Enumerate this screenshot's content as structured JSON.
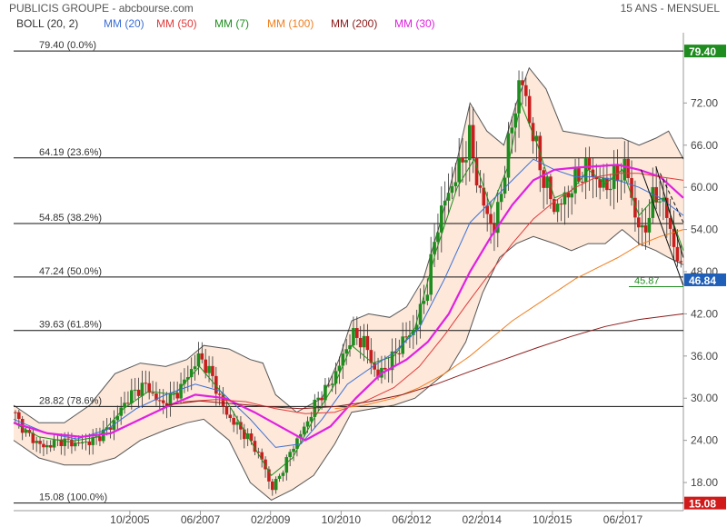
{
  "header": {
    "title": "PUBLICIS GROUPE - abcbourse.com",
    "period": "15 ANS - MENSUEL"
  },
  "legend": [
    {
      "label": "BOLL (20, 2)",
      "color": "#333333"
    },
    {
      "label": "MM (20)",
      "color": "#3b6fd6"
    },
    {
      "label": "MM (50)",
      "color": "#e23a3a"
    },
    {
      "label": "MM (7)",
      "color": "#1f8f1f"
    },
    {
      "label": "MM (100)",
      "color": "#f07f1f"
    },
    {
      "label": "MM (200)",
      "color": "#8b1a1a"
    },
    {
      "label": "MM (30)",
      "color": "#e020e0"
    }
  ],
  "chart_data": {
    "type": "line",
    "title": "PUBLICIS GROUPE - abcbourse.com",
    "subtitle": "15 ANS - MENSUEL",
    "ylim": [
      14,
      82
    ],
    "xlim": [
      2003.0,
      2018.85
    ],
    "y_ticks": [
      "18.00",
      "24.00",
      "30.00",
      "36.00",
      "42.00",
      "48.00",
      "54.00",
      "60.00",
      "66.00",
      "72.00"
    ],
    "x_ticks": [
      {
        "label": "10/2005",
        "t": 2005.75
      },
      {
        "label": "06/2007",
        "t": 2007.42
      },
      {
        "label": "02/2009",
        "t": 2009.08
      },
      {
        "label": "10/2010",
        "t": 2010.75
      },
      {
        "label": "06/2012",
        "t": 2012.42
      },
      {
        "label": "02/2014",
        "t": 2014.08
      },
      {
        "label": "10/2015",
        "t": 2015.75
      },
      {
        "label": "06/2017",
        "t": 2017.42
      }
    ],
    "fibonacci_levels": [
      {
        "label": "79.40 (0.0%)",
        "value": 79.4
      },
      {
        "label": "64.19 (23.6%)",
        "value": 64.19
      },
      {
        "label": "54.85 (38.2%)",
        "value": 54.85
      },
      {
        "label": "47.24 (50.0%)",
        "value": 47.24
      },
      {
        "label": "39.63 (61.8%)",
        "value": 39.63
      },
      {
        "label": "28.82 (78.6%)",
        "value": 28.82
      },
      {
        "label": "15.08 (100.0%)",
        "value": 15.08
      }
    ],
    "price_tags": [
      {
        "label": "79.40",
        "value": 79.4,
        "color": "#1e8c1e"
      },
      {
        "label": "46.84",
        "value": 46.84,
        "color": "#1f5fb8"
      },
      {
        "label": "15.08",
        "value": 15.08,
        "color": "#d11a1a"
      }
    ],
    "annotation": {
      "label": "45.87",
      "value": 45.87
    },
    "price_anchors": [
      [
        2003.0,
        28
      ],
      [
        2003.3,
        25
      ],
      [
        2003.7,
        23
      ],
      [
        2004.1,
        24
      ],
      [
        2004.5,
        23.5
      ],
      [
        2004.9,
        24
      ],
      [
        2005.3,
        26
      ],
      [
        2005.7,
        30
      ],
      [
        2006.1,
        32
      ],
      [
        2006.5,
        29
      ],
      [
        2006.9,
        31
      ],
      [
        2007.2,
        34
      ],
      [
        2007.4,
        36
      ],
      [
        2007.7,
        33
      ],
      [
        2008.0,
        28
      ],
      [
        2008.3,
        26
      ],
      [
        2008.6,
        24
      ],
      [
        2008.9,
        21
      ],
      [
        2009.1,
        17
      ],
      [
        2009.3,
        19
      ],
      [
        2009.6,
        23
      ],
      [
        2009.9,
        26
      ],
      [
        2010.2,
        30
      ],
      [
        2010.5,
        32
      ],
      [
        2010.8,
        36
      ],
      [
        2011.0,
        39
      ],
      [
        2011.3,
        38
      ],
      [
        2011.6,
        33
      ],
      [
        2011.9,
        35
      ],
      [
        2012.2,
        38
      ],
      [
        2012.5,
        40
      ],
      [
        2012.8,
        46
      ],
      [
        2013.0,
        54
      ],
      [
        2013.2,
        58
      ],
      [
        2013.5,
        62
      ],
      [
        2013.8,
        67
      ],
      [
        2014.0,
        60
      ],
      [
        2014.2,
        56
      ],
      [
        2014.4,
        54
      ],
      [
        2014.6,
        62
      ],
      [
        2014.8,
        69
      ],
      [
        2015.0,
        76
      ],
      [
        2015.2,
        70
      ],
      [
        2015.5,
        62
      ],
      [
        2015.8,
        57
      ],
      [
        2016.0,
        58
      ],
      [
        2016.3,
        61
      ],
      [
        2016.6,
        63
      ],
      [
        2016.9,
        60
      ],
      [
        2017.2,
        61
      ],
      [
        2017.5,
        63
      ],
      [
        2017.7,
        56
      ],
      [
        2017.9,
        53
      ],
      [
        2018.1,
        58
      ],
      [
        2018.3,
        59
      ],
      [
        2018.5,
        55
      ],
      [
        2018.7,
        50
      ],
      [
        2018.85,
        46.84
      ]
    ],
    "series": [
      {
        "label": "MM (7)",
        "color": "#1f8f1f",
        "width": 1.0,
        "values": [
          [
            2003.0,
            26.5
          ],
          [
            2003.6,
            24.5
          ],
          [
            2004.3,
            23.8
          ],
          [
            2005.0,
            24.5
          ],
          [
            2005.6,
            28.5
          ],
          [
            2006.2,
            31
          ],
          [
            2006.8,
            30.5
          ],
          [
            2007.4,
            34.5
          ],
          [
            2007.9,
            31
          ],
          [
            2008.5,
            25
          ],
          [
            2009.1,
            19
          ],
          [
            2009.6,
            21.5
          ],
          [
            2010.1,
            27
          ],
          [
            2010.6,
            32
          ],
          [
            2011.0,
            37.5
          ],
          [
            2011.5,
            35
          ],
          [
            2012.0,
            36
          ],
          [
            2012.5,
            40
          ],
          [
            2013.0,
            51
          ],
          [
            2013.5,
            60
          ],
          [
            2013.9,
            64
          ],
          [
            2014.3,
            57
          ],
          [
            2014.7,
            63
          ],
          [
            2015.0,
            72
          ],
          [
            2015.4,
            66
          ],
          [
            2015.8,
            58.5
          ],
          [
            2016.2,
            59.5
          ],
          [
            2016.6,
            62.5
          ],
          [
            2017.0,
            60.5
          ],
          [
            2017.4,
            62.5
          ],
          [
            2017.8,
            56
          ],
          [
            2018.1,
            58
          ],
          [
            2018.4,
            58.5
          ],
          [
            2018.85,
            51
          ]
        ]
      },
      {
        "label": "MM (20)",
        "color": "#3b6fd6",
        "width": 1.0,
        "values": [
          [
            2003.0,
            27
          ],
          [
            2003.8,
            25
          ],
          [
            2004.5,
            24.2
          ],
          [
            2005.2,
            25.5
          ],
          [
            2005.9,
            28.5
          ],
          [
            2006.6,
            30.5
          ],
          [
            2007.3,
            32
          ],
          [
            2007.9,
            31
          ],
          [
            2008.6,
            27
          ],
          [
            2009.2,
            23
          ],
          [
            2009.8,
            23.5
          ],
          [
            2010.3,
            27
          ],
          [
            2010.9,
            32
          ],
          [
            2011.5,
            34.5
          ],
          [
            2012.0,
            36.5
          ],
          [
            2012.6,
            40
          ],
          [
            2013.2,
            47
          ],
          [
            2013.8,
            55
          ],
          [
            2014.3,
            58
          ],
          [
            2014.8,
            61
          ],
          [
            2015.3,
            64
          ],
          [
            2015.8,
            62.5
          ],
          [
            2016.3,
            61.5
          ],
          [
            2016.8,
            61.5
          ],
          [
            2017.3,
            61
          ],
          [
            2017.8,
            60
          ],
          [
            2018.3,
            58.5
          ],
          [
            2018.85,
            56
          ]
        ]
      },
      {
        "label": "MM (30)",
        "color": "#e020e0",
        "width": 2.2,
        "values": [
          [
            2003.0,
            26.5
          ],
          [
            2003.8,
            25
          ],
          [
            2004.6,
            24.5
          ],
          [
            2005.3,
            25
          ],
          [
            2006.0,
            27
          ],
          [
            2006.7,
            29
          ],
          [
            2007.3,
            30.5
          ],
          [
            2008.0,
            30
          ],
          [
            2008.7,
            28
          ],
          [
            2009.3,
            26
          ],
          [
            2009.9,
            24
          ],
          [
            2010.5,
            26
          ],
          [
            2011.1,
            30
          ],
          [
            2011.7,
            33.5
          ],
          [
            2012.3,
            35.5
          ],
          [
            2012.8,
            38
          ],
          [
            2013.3,
            42
          ],
          [
            2013.8,
            48
          ],
          [
            2014.3,
            53
          ],
          [
            2014.8,
            57.5
          ],
          [
            2015.3,
            61
          ],
          [
            2015.8,
            62.5
          ],
          [
            2016.3,
            62.8
          ],
          [
            2016.8,
            63
          ],
          [
            2017.3,
            63.2
          ],
          [
            2017.8,
            62.5
          ],
          [
            2018.3,
            61.5
          ],
          [
            2018.85,
            58.5
          ]
        ]
      },
      {
        "label": "MM (50)",
        "color": "#e23a3a",
        "width": 1.0,
        "values": [
          [
            2007.0,
            29.5
          ],
          [
            2007.8,
            29.8
          ],
          [
            2008.5,
            29.5
          ],
          [
            2009.2,
            28.5
          ],
          [
            2009.9,
            27.8
          ],
          [
            2010.6,
            28
          ],
          [
            2011.3,
            29.5
          ],
          [
            2012.0,
            31.5
          ],
          [
            2012.6,
            34.5
          ],
          [
            2013.2,
            39
          ],
          [
            2013.8,
            44
          ],
          [
            2014.3,
            48
          ],
          [
            2014.8,
            52
          ],
          [
            2015.3,
            55.5
          ],
          [
            2015.8,
            58
          ],
          [
            2016.3,
            60
          ],
          [
            2016.8,
            61.5
          ],
          [
            2017.3,
            62
          ],
          [
            2017.8,
            62
          ],
          [
            2018.3,
            61.5
          ],
          [
            2018.85,
            61
          ]
        ]
      },
      {
        "label": "MM (100)",
        "color": "#f07f1f",
        "width": 1.0,
        "values": [
          [
            2010.6,
            28.5
          ],
          [
            2011.3,
            29
          ],
          [
            2012.0,
            30
          ],
          [
            2012.6,
            31.5
          ],
          [
            2013.2,
            33.5
          ],
          [
            2013.8,
            36
          ],
          [
            2014.3,
            38.5
          ],
          [
            2014.8,
            41
          ],
          [
            2015.3,
            43
          ],
          [
            2015.8,
            45
          ],
          [
            2016.3,
            47
          ],
          [
            2016.8,
            48.5
          ],
          [
            2017.3,
            50
          ],
          [
            2017.8,
            51.8
          ],
          [
            2018.3,
            53
          ],
          [
            2018.85,
            54
          ]
        ]
      },
      {
        "label": "MM (200)",
        "color": "#8b1a1a",
        "width": 1.0,
        "values": [
          [
            2006.6,
            29
          ],
          [
            2007.4,
            29.6
          ],
          [
            2008.2,
            29.2
          ],
          [
            2009.0,
            28.8
          ],
          [
            2009.8,
            28.5
          ],
          [
            2010.6,
            28.8
          ],
          [
            2011.4,
            29.5
          ],
          [
            2012.2,
            30.5
          ],
          [
            2013.0,
            32
          ],
          [
            2013.8,
            33.8
          ],
          [
            2014.6,
            35.5
          ],
          [
            2015.4,
            37.2
          ],
          [
            2016.2,
            38.8
          ],
          [
            2017.0,
            40.2
          ],
          [
            2017.8,
            41.2
          ],
          [
            2018.85,
            42
          ]
        ]
      }
    ],
    "bollinger_upper": [
      [
        2003.0,
        29
      ],
      [
        2003.6,
        26.5
      ],
      [
        2004.2,
        26.5
      ],
      [
        2004.8,
        29
      ],
      [
        2005.4,
        33.5
      ],
      [
        2006.0,
        35
      ],
      [
        2006.6,
        34.5
      ],
      [
        2007.1,
        35.5
      ],
      [
        2007.5,
        37.5
      ],
      [
        2008.1,
        37
      ],
      [
        2008.6,
        35.5
      ],
      [
        2008.9,
        35
      ],
      [
        2009.2,
        30.5
      ],
      [
        2009.7,
        28
      ],
      [
        2010.3,
        30
      ],
      [
        2010.7,
        35.5
      ],
      [
        2011.0,
        41
      ],
      [
        2011.4,
        42
      ],
      [
        2011.9,
        41.5
      ],
      [
        2012.3,
        43
      ],
      [
        2012.7,
        47
      ],
      [
        2013.1,
        55
      ],
      [
        2013.5,
        64
      ],
      [
        2013.8,
        72
      ],
      [
        2014.2,
        68
      ],
      [
        2014.6,
        66
      ],
      [
        2014.9,
        72
      ],
      [
        2015.2,
        77
      ],
      [
        2015.6,
        74
      ],
      [
        2016.0,
        68
      ],
      [
        2016.5,
        67.5
      ],
      [
        2017.0,
        67
      ],
      [
        2017.4,
        67
      ],
      [
        2017.8,
        66
      ],
      [
        2018.2,
        67
      ],
      [
        2018.5,
        68
      ],
      [
        2018.85,
        64
      ]
    ],
    "bollinger_lower": [
      [
        2003.0,
        24
      ],
      [
        2003.6,
        21.5
      ],
      [
        2004.2,
        20.5
      ],
      [
        2004.8,
        20.5
      ],
      [
        2005.4,
        21.5
      ],
      [
        2006.0,
        24
      ],
      [
        2006.6,
        25.5
      ],
      [
        2007.1,
        26.5
      ],
      [
        2007.5,
        27
      ],
      [
        2008.1,
        24
      ],
      [
        2008.6,
        18
      ],
      [
        2009.1,
        15.5
      ],
      [
        2009.6,
        17
      ],
      [
        2010.1,
        19
      ],
      [
        2010.6,
        23.5
      ],
      [
        2011.0,
        28
      ],
      [
        2011.5,
        28.5
      ],
      [
        2012.0,
        29
      ],
      [
        2012.5,
        30
      ],
      [
        2012.9,
        32
      ],
      [
        2013.3,
        34
      ],
      [
        2013.7,
        38
      ],
      [
        2014.1,
        45
      ],
      [
        2014.5,
        50
      ],
      [
        2014.9,
        52
      ],
      [
        2015.3,
        53
      ],
      [
        2015.8,
        52
      ],
      [
        2016.2,
        51
      ],
      [
        2016.6,
        52
      ],
      [
        2017.0,
        52
      ],
      [
        2017.4,
        54
      ],
      [
        2017.8,
        52
      ],
      [
        2018.2,
        51
      ],
      [
        2018.5,
        50
      ],
      [
        2018.85,
        49
      ]
    ],
    "trendlines": [
      {
        "from": [
          2017.85,
          62.5
        ],
        "to": [
          2018.85,
          46.0
        ],
        "dashed": false
      },
      {
        "from": [
          2018.2,
          63.0
        ],
        "to": [
          2018.85,
          50.0
        ],
        "dashed": false
      },
      {
        "from": [
          2018.3,
          62.0
        ],
        "to": [
          2018.85,
          55.0
        ],
        "dashed": true
      }
    ]
  }
}
